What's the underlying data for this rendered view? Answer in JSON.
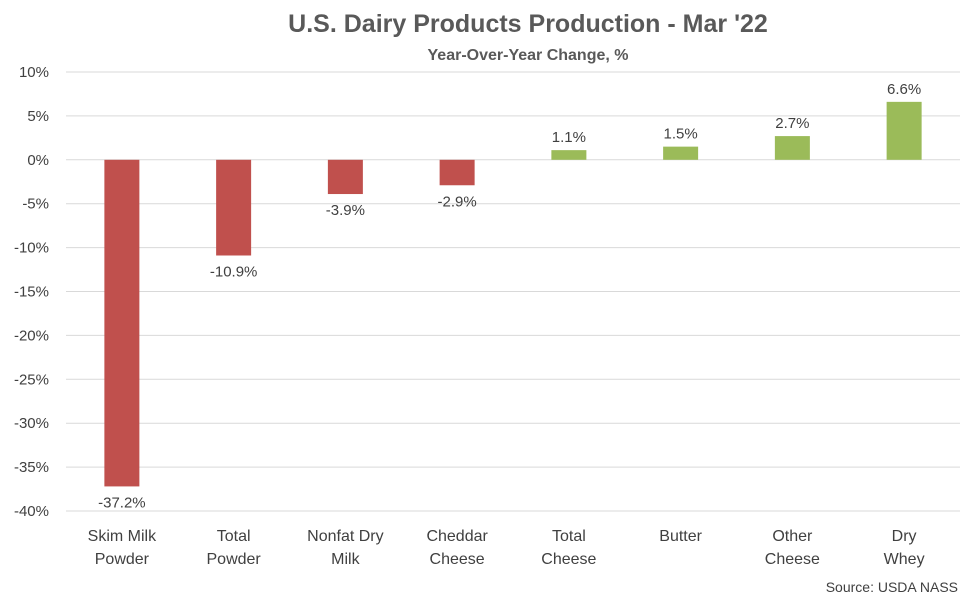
{
  "chart_data": {
    "type": "bar",
    "title": "U.S. Dairy Products Production - Mar '22",
    "subtitle": "Year-Over-Year Change, %",
    "source": "Source: USDA NASS",
    "ylim": [
      -40,
      10
    ],
    "yticks": [
      10,
      5,
      0,
      -5,
      -10,
      -15,
      -20,
      -25,
      -30,
      -35,
      -40
    ],
    "ytick_labels": [
      "10%",
      "5%",
      "0%",
      "-5%",
      "-10%",
      "-15%",
      "-20%",
      "-25%",
      "-30%",
      "-35%",
      "-40%"
    ],
    "grid": true,
    "categories": [
      [
        "Skim Milk",
        "Powder"
      ],
      [
        "Total",
        "Powder"
      ],
      [
        "Nonfat Dry",
        "Milk"
      ],
      [
        "Cheddar",
        "Cheese"
      ],
      [
        "Total",
        "Cheese"
      ],
      [
        "Butter"
      ],
      [
        "Other",
        "Cheese"
      ],
      [
        "Dry",
        "Whey"
      ]
    ],
    "values": [
      -37.2,
      -10.9,
      -3.9,
      -2.9,
      1.1,
      1.5,
      2.7,
      6.6
    ],
    "value_labels": [
      "-37.2%",
      "-10.9%",
      "-3.9%",
      "-2.9%",
      "1.1%",
      "1.5%",
      "2.7%",
      "6.6%"
    ],
    "colors": {
      "negative": "#c0504d",
      "positive": "#9bbb59",
      "grid": "#d9d9d9",
      "text": "#404040",
      "title": "#595959"
    }
  }
}
